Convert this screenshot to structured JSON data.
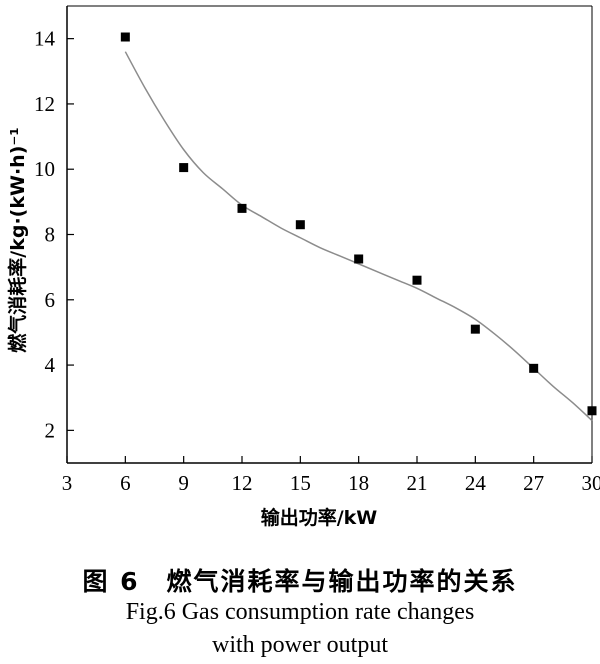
{
  "chart_data": {
    "type": "scatter",
    "xlabel": "输出功率/kW",
    "ylabel": "燃气消耗率/kg·(kW·h)⁻¹",
    "xlim": [
      3,
      30
    ],
    "ylim": [
      1,
      15
    ],
    "xticks": [
      3,
      6,
      9,
      12,
      15,
      18,
      21,
      24,
      27,
      30
    ],
    "yticks": [
      2,
      4,
      6,
      8,
      10,
      12,
      14
    ],
    "grid": false,
    "legend": "none",
    "series": [
      {
        "kind": "points",
        "marker": "square",
        "color": "#000000",
        "x": [
          6,
          9,
          12,
          15,
          18,
          21,
          24,
          27,
          30
        ],
        "y": [
          14.05,
          10.05,
          8.8,
          8.3,
          7.25,
          6.6,
          5.1,
          3.9,
          2.6
        ]
      },
      {
        "kind": "fitted-curve",
        "color": "#8c8c8c",
        "x": [
          6,
          7,
          8,
          9,
          10,
          11,
          12,
          13,
          14,
          15,
          16,
          17,
          18,
          19,
          20,
          21,
          22,
          23,
          24,
          25,
          26,
          27,
          28,
          29,
          30
        ],
        "y": [
          13.6,
          12.5,
          11.5,
          10.6,
          9.9,
          9.4,
          8.9,
          8.55,
          8.2,
          7.9,
          7.6,
          7.35,
          7.1,
          6.85,
          6.6,
          6.35,
          6.05,
          5.75,
          5.4,
          4.95,
          4.45,
          3.9,
          3.35,
          2.85,
          2.3
        ]
      }
    ]
  },
  "caption": {
    "cn": "图 6　燃气消耗率与输出功率的关系",
    "en_line1": "Fig.6 Gas consumption rate changes",
    "en_line2": "with power output"
  }
}
